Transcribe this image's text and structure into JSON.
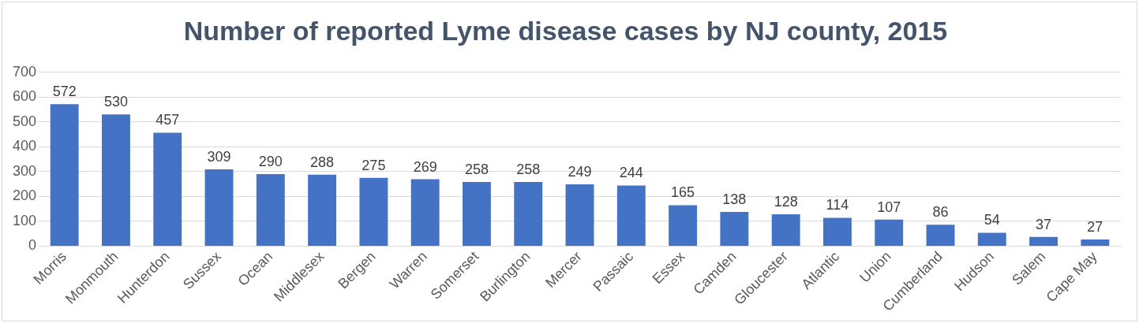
{
  "chart_data": {
    "type": "bar",
    "title": "Number of reported Lyme disease cases by NJ county, 2015",
    "categories": [
      "Morris",
      "Monmouth",
      "Hunterdon",
      "Sussex",
      "Ocean",
      "Middlesex",
      "Bergen",
      "Warren",
      "Somerset",
      "Burlington",
      "Mercer",
      "Passaic",
      "Essex",
      "Camden",
      "Gloucester",
      "Atlantic",
      "Union",
      "Cumberland",
      "Hudson",
      "Salem",
      "Cape May"
    ],
    "values": [
      572,
      530,
      457,
      309,
      290,
      288,
      275,
      269,
      258,
      258,
      249,
      244,
      165,
      138,
      128,
      114,
      107,
      86,
      54,
      37,
      27
    ],
    "color": "#4472c4",
    "ylim": [
      0,
      700
    ],
    "yticks": [
      0,
      100,
      200,
      300,
      400,
      500,
      600,
      700
    ],
    "grid": "y",
    "legend": false,
    "data_labels": true
  }
}
